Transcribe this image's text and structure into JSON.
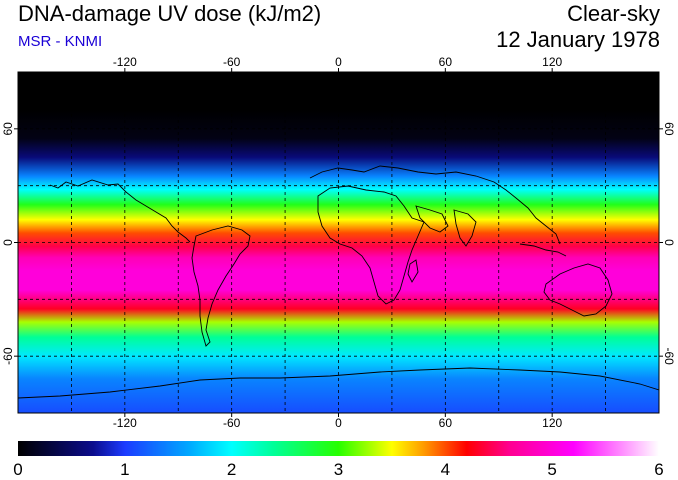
{
  "header": {
    "title": "DNA-damage UV dose (kJ/m2)",
    "subtitle": "MSR - KNMI",
    "condition": "Clear-sky",
    "date": "12 January 1978"
  },
  "colors": {
    "subtitle": "#1a00d6",
    "land_outline": "#000000",
    "grid": "#000000"
  },
  "map": {
    "lon_ticks": [
      -120,
      -60,
      0,
      60,
      120
    ],
    "lat_ticks": [
      60,
      0,
      -60
    ],
    "lon_tick_labels": [
      "-120",
      "-60",
      "0",
      "60",
      "120"
    ],
    "lat_tick_labels": [
      "60",
      "0",
      "-60"
    ],
    "grid_lons": [
      -150,
      -120,
      -90,
      -60,
      -30,
      0,
      30,
      60,
      90,
      120,
      150
    ],
    "grid_lats": [
      60,
      30,
      0,
      -30,
      -60
    ],
    "lon_range": [
      -180,
      180
    ],
    "lat_range": [
      -90,
      90
    ],
    "projection": "equirectangular"
  },
  "colorbar": {
    "min": 0,
    "max": 6,
    "labels": [
      "0",
      "1",
      "2",
      "3",
      "4",
      "5",
      "6"
    ],
    "stops": [
      {
        "value": 0,
        "color": "#000000"
      },
      {
        "value": 0.7,
        "color": "#0b0c8c"
      },
      {
        "value": 1.0,
        "color": "#1c3bff"
      },
      {
        "value": 1.6,
        "color": "#00a8ff"
      },
      {
        "value": 2.0,
        "color": "#00ffff"
      },
      {
        "value": 2.4,
        "color": "#00ff96"
      },
      {
        "value": 3.0,
        "color": "#27ff00"
      },
      {
        "value": 3.5,
        "color": "#ffff00"
      },
      {
        "value": 3.8,
        "color": "#ff9a00"
      },
      {
        "value": 4.2,
        "color": "#ff0000"
      },
      {
        "value": 4.6,
        "color": "#ff0090"
      },
      {
        "value": 5.2,
        "color": "#ff00ff"
      },
      {
        "value": 5.7,
        "color": "#ff9cff"
      },
      {
        "value": 6.0,
        "color": "#ffffff"
      }
    ]
  },
  "dose_profile_by_latitude": [
    {
      "lat": 90,
      "dose": 0.0
    },
    {
      "lat": 70,
      "dose": 0.0
    },
    {
      "lat": 55,
      "dose": 0.1
    },
    {
      "lat": 45,
      "dose": 0.6
    },
    {
      "lat": 35,
      "dose": 1.4
    },
    {
      "lat": 28,
      "dose": 2.0
    },
    {
      "lat": 20,
      "dose": 2.9
    },
    {
      "lat": 12,
      "dose": 3.5
    },
    {
      "lat": 5,
      "dose": 4.0
    },
    {
      "lat": -2,
      "dose": 4.4
    },
    {
      "lat": -8,
      "dose": 4.8
    },
    {
      "lat": -15,
      "dose": 5.0
    },
    {
      "lat": -25,
      "dose": 5.0
    },
    {
      "lat": -35,
      "dose": 4.3
    },
    {
      "lat": -42,
      "dose": 3.3
    },
    {
      "lat": -50,
      "dose": 2.4
    },
    {
      "lat": -60,
      "dose": 1.9
    },
    {
      "lat": -72,
      "dose": 1.4
    },
    {
      "lat": -90,
      "dose": 1.1
    }
  ]
}
